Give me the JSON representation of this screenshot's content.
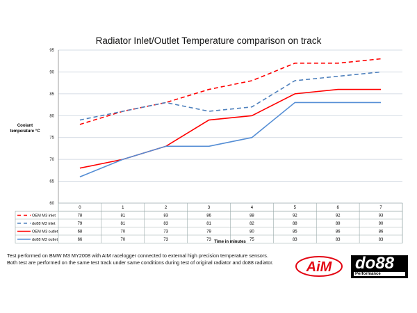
{
  "chart_data": {
    "type": "line",
    "title": "Radiator Inlet/Outlet Temperature comparison on track",
    "xlabel": "Time in minutes",
    "ylabel": "Coolant temperature °C",
    "ylim": [
      60,
      95
    ],
    "yticks": [
      "60",
      "65",
      "70",
      "75",
      "80",
      "85",
      "90",
      "95"
    ],
    "grid": true,
    "legend": "data-table-left",
    "categories": [
      "0",
      "1",
      "2",
      "3",
      "4",
      "5",
      "6",
      "7"
    ],
    "series": [
      {
        "name": "OEM M3 inlet",
        "values": [
          78,
          81,
          83,
          86,
          88,
          92,
          92,
          93
        ],
        "color": "#ff0000",
        "style": "dashed"
      },
      {
        "name": "do88 M3 inlet",
        "values": [
          79,
          81,
          83,
          81,
          82,
          88,
          89,
          90
        ],
        "color": "#4f81bd",
        "style": "dashed"
      },
      {
        "name": "OEM M3 outlet",
        "values": [
          68,
          70,
          73,
          79,
          80,
          85,
          86,
          86
        ],
        "color": "#ff0000",
        "style": "solid"
      },
      {
        "name": "do88 M3 outlet",
        "values": [
          66,
          70,
          73,
          73,
          75,
          83,
          83,
          83
        ],
        "color": "#558ed5",
        "style": "solid"
      }
    ]
  },
  "notes": {
    "line1": "Test performed on BMW M3 MY2008 with AIM racelogger connected to external high precision temperature sensors.",
    "line2": "Both test are performed on the same test track under same conditions during test of original radiator and do88 radiator."
  },
  "logos": {
    "aim": "AiM",
    "do88": "do88",
    "do88_sub": "Performance"
  }
}
